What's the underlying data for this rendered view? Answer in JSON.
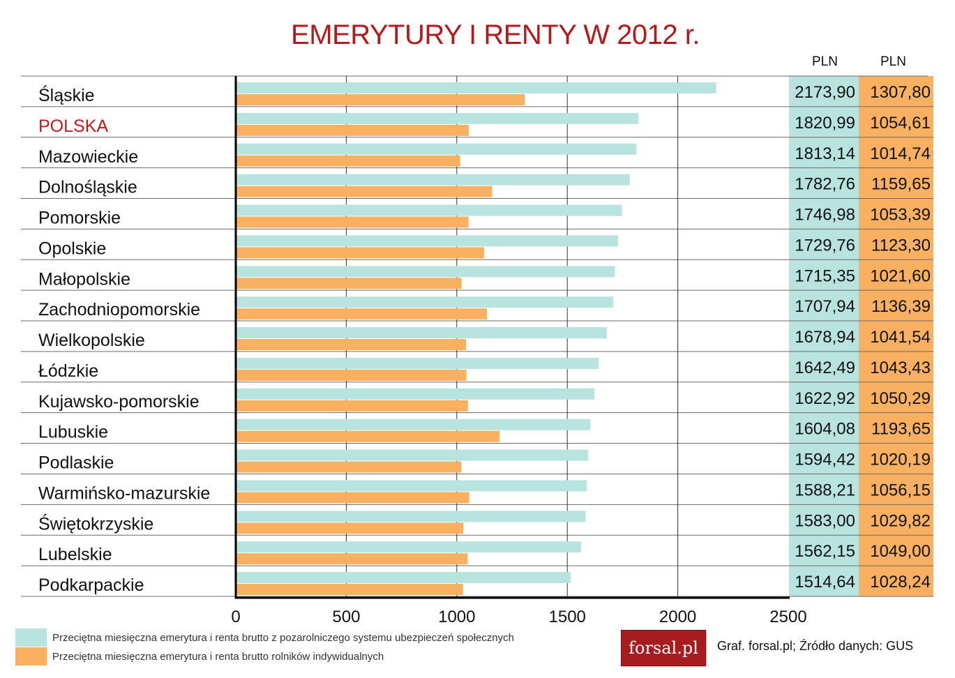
{
  "chart_data": {
    "type": "bar",
    "orientation": "horizontal",
    "title": "EMERYTURY I RENTY W 2012 r.",
    "units": [
      "PLN",
      "PLN"
    ],
    "categories": [
      "Śląskie",
      "POLSKA",
      "Mazowieckie",
      "Dolnośląskie",
      "Pomorskie",
      "Opolskie",
      "Małopolskie",
      "Zachodniopomorskie",
      "Wielkopolskie",
      "Łódzkie",
      "Kujawsko-pomorskie",
      "Lubuskie",
      "Podlaskie",
      "Warmińsko-mazurskie",
      "Świętokrzyskie",
      "Lubelskie",
      "Podkarpackie"
    ],
    "highlight_category": "POLSKA",
    "series": [
      {
        "name": "Przeciętna miesięczna emerytura i renta brutto z pozarolniczego systemu ubezpieczeń społecznych",
        "color": "#b8e3de",
        "values": [
          2173.9,
          1820.99,
          1813.14,
          1782.76,
          1746.98,
          1729.76,
          1715.35,
          1707.94,
          1678.94,
          1642.49,
          1622.92,
          1604.08,
          1594.42,
          1588.21,
          1583.0,
          1562.15,
          1514.64
        ],
        "labels": [
          "2173,90",
          "1820,99",
          "1813,14",
          "1782,76",
          "1746,98",
          "1729,76",
          "1715,35",
          "1707,94",
          "1678,94",
          "1642,49",
          "1622,92",
          "1604,08",
          "1594,42",
          "1588,21",
          "1583,00",
          "1562,15",
          "1514,64"
        ]
      },
      {
        "name": "Przeciętna miesięczna emerytura i renta brutto rolników indywidualnych",
        "color": "#f9b060",
        "values": [
          1307.8,
          1054.61,
          1014.74,
          1159.65,
          1053.39,
          1123.3,
          1021.6,
          1136.39,
          1041.54,
          1043.43,
          1050.29,
          1193.65,
          1020.19,
          1056.15,
          1029.82,
          1049.0,
          1028.24
        ],
        "labels": [
          "1307,80",
          "1054,61",
          "1014,74",
          "1159,65",
          "1053,39",
          "1123,30",
          "1021,60",
          "1136,39",
          "1041,54",
          "1043,43",
          "1050,29",
          "1193,65",
          "1020,19",
          "1056,15",
          "1029,82",
          "1049,00",
          "1028,24"
        ]
      }
    ],
    "xlim": [
      0,
      2500
    ],
    "xticks": [
      0,
      500,
      1000,
      1500,
      2000,
      2500
    ],
    "grid": true,
    "legend_position": "bottom-left"
  },
  "branding": {
    "logo_text": "forsal.pl",
    "source": "Graf. forsal.pl;  Źródło danych: GUS"
  }
}
